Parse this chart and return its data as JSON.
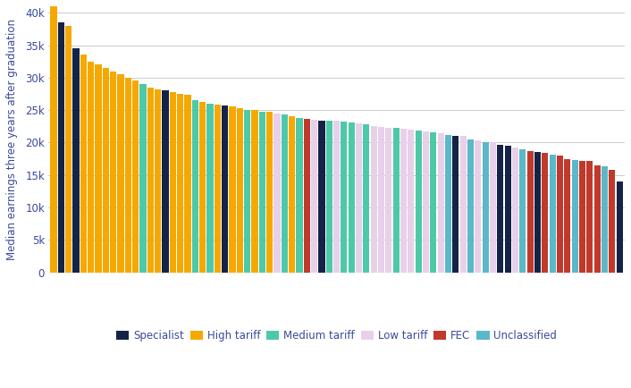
{
  "bars": [
    {
      "value": 41000,
      "category": "High tariff"
    },
    {
      "value": 38500,
      "category": "Specialist"
    },
    {
      "value": 38000,
      "category": "High tariff"
    },
    {
      "value": 34500,
      "category": "Specialist"
    },
    {
      "value": 33500,
      "category": "High tariff"
    },
    {
      "value": 32500,
      "category": "High tariff"
    },
    {
      "value": 32000,
      "category": "High tariff"
    },
    {
      "value": 31500,
      "category": "High tariff"
    },
    {
      "value": 31000,
      "category": "High tariff"
    },
    {
      "value": 30500,
      "category": "High tariff"
    },
    {
      "value": 30000,
      "category": "High tariff"
    },
    {
      "value": 29500,
      "category": "High tariff"
    },
    {
      "value": 29000,
      "category": "Medium tariff"
    },
    {
      "value": 28500,
      "category": "High tariff"
    },
    {
      "value": 28200,
      "category": "High tariff"
    },
    {
      "value": 28000,
      "category": "Specialist"
    },
    {
      "value": 27800,
      "category": "High tariff"
    },
    {
      "value": 27500,
      "category": "High tariff"
    },
    {
      "value": 27300,
      "category": "High tariff"
    },
    {
      "value": 26500,
      "category": "Medium tariff"
    },
    {
      "value": 26300,
      "category": "High tariff"
    },
    {
      "value": 26000,
      "category": "Medium tariff"
    },
    {
      "value": 25800,
      "category": "High tariff"
    },
    {
      "value": 25700,
      "category": "Specialist"
    },
    {
      "value": 25500,
      "category": "High tariff"
    },
    {
      "value": 25300,
      "category": "High tariff"
    },
    {
      "value": 25000,
      "category": "Medium tariff"
    },
    {
      "value": 25000,
      "category": "High tariff"
    },
    {
      "value": 24800,
      "category": "Medium tariff"
    },
    {
      "value": 24700,
      "category": "High tariff"
    },
    {
      "value": 24500,
      "category": "Low tariff"
    },
    {
      "value": 24300,
      "category": "Medium tariff"
    },
    {
      "value": 24000,
      "category": "High tariff"
    },
    {
      "value": 23800,
      "category": "Medium tariff"
    },
    {
      "value": 23700,
      "category": "FEC"
    },
    {
      "value": 23500,
      "category": "Low tariff"
    },
    {
      "value": 23400,
      "category": "Specialist"
    },
    {
      "value": 23400,
      "category": "Medium tariff"
    },
    {
      "value": 23300,
      "category": "Low tariff"
    },
    {
      "value": 23200,
      "category": "Medium tariff"
    },
    {
      "value": 23100,
      "category": "Medium tariff"
    },
    {
      "value": 23000,
      "category": "Low tariff"
    },
    {
      "value": 22800,
      "category": "Medium tariff"
    },
    {
      "value": 22500,
      "category": "Low tariff"
    },
    {
      "value": 22400,
      "category": "Low tariff"
    },
    {
      "value": 22300,
      "category": "Low tariff"
    },
    {
      "value": 22200,
      "category": "Medium tariff"
    },
    {
      "value": 22100,
      "category": "Low tariff"
    },
    {
      "value": 22000,
      "category": "Low tariff"
    },
    {
      "value": 21900,
      "category": "Medium tariff"
    },
    {
      "value": 21700,
      "category": "Low tariff"
    },
    {
      "value": 21600,
      "category": "Medium tariff"
    },
    {
      "value": 21400,
      "category": "Low tariff"
    },
    {
      "value": 21200,
      "category": "Unclassified"
    },
    {
      "value": 21000,
      "category": "Specialist"
    },
    {
      "value": 21000,
      "category": "Low tariff"
    },
    {
      "value": 20500,
      "category": "Unclassified"
    },
    {
      "value": 20300,
      "category": "Low tariff"
    },
    {
      "value": 20000,
      "category": "Unclassified"
    },
    {
      "value": 20000,
      "category": "Low tariff"
    },
    {
      "value": 19700,
      "category": "Specialist"
    },
    {
      "value": 19500,
      "category": "Specialist"
    },
    {
      "value": 19300,
      "category": "Low tariff"
    },
    {
      "value": 19000,
      "category": "Unclassified"
    },
    {
      "value": 18700,
      "category": "FEC"
    },
    {
      "value": 18500,
      "category": "Specialist"
    },
    {
      "value": 18400,
      "category": "FEC"
    },
    {
      "value": 18200,
      "category": "Unclassified"
    },
    {
      "value": 18000,
      "category": "FEC"
    },
    {
      "value": 17500,
      "category": "FEC"
    },
    {
      "value": 17300,
      "category": "Unclassified"
    },
    {
      "value": 17200,
      "category": "FEC"
    },
    {
      "value": 17100,
      "category": "FEC"
    },
    {
      "value": 16500,
      "category": "FEC"
    },
    {
      "value": 16400,
      "category": "Unclassified"
    },
    {
      "value": 15800,
      "category": "FEC"
    },
    {
      "value": 14000,
      "category": "Specialist"
    }
  ],
  "category_colors": {
    "Specialist": "#152347",
    "High tariff": "#f5a800",
    "Medium tariff": "#4ec9a8",
    "Low tariff": "#e8d0ea",
    "FEC": "#c0392b",
    "Unclassified": "#5bb8c9"
  },
  "ylabel": "Median earnings three years after graduation",
  "ylim": [
    0,
    41000
  ],
  "yticks": [
    0,
    5000,
    10000,
    15000,
    20000,
    25000,
    30000,
    35000,
    40000
  ],
  "ytick_labels": [
    "0",
    "5k",
    "10k",
    "15k",
    "20k",
    "25k",
    "30k",
    "35k",
    "40k"
  ],
  "legend_order": [
    "Specialist",
    "High tariff",
    "Medium tariff",
    "Low tariff",
    "FEC",
    "Unclassified"
  ],
  "background_color": "#ffffff",
  "grid_color": "#cccccc",
  "text_color": "#3a4a9c",
  "axis_color": "#3a4a9c"
}
